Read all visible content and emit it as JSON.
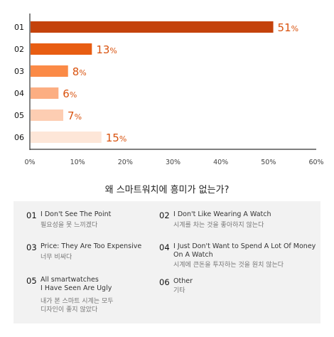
{
  "chart_data": {
    "type": "bar",
    "orientation": "horizontal",
    "categories": [
      "01",
      "02",
      "03",
      "04",
      "05",
      "06"
    ],
    "values": [
      51,
      13,
      8,
      6,
      7,
      15
    ],
    "value_labels": [
      "51%",
      "13%",
      "8%",
      "6%",
      "7%",
      "15%"
    ],
    "bar_colors": [
      "#c4420b",
      "#e85d12",
      "#fb8a46",
      "#fcae82",
      "#fdcdb2",
      "#fde6d8"
    ],
    "label_color": "#d9530f",
    "x_ticks": [
      "0%",
      "10%",
      "20%",
      "30%",
      "40%",
      "50%",
      "60%"
    ],
    "xlim": [
      0,
      60
    ],
    "grid": false
  },
  "question": "왜 스마트워치에 흥미가 없는가?",
  "legend": [
    {
      "num": "01",
      "en": "I Don't See The Point",
      "ko": "필요성을 못 느끼겠다"
    },
    {
      "num": "02",
      "en": "I Don't Like Wearing A Watch",
      "ko": "시계를 차는 것을 좋아하지 않는다"
    },
    {
      "num": "03",
      "en": "Price: They Are Too Expensive",
      "ko": "너무 비싸다"
    },
    {
      "num": "04",
      "en": "I Just Don't Want to Spend A Lot Of Money\nOn A Watch",
      "ko": "시계에 큰돈을 투자하는 것을 원치 않는다"
    },
    {
      "num": "05",
      "en": "All smartwatches\nI Have Seen Are Ugly",
      "ko": "내가 본 스마트 시계는 모두\n디자인이 좋지 않았다"
    },
    {
      "num": "06",
      "en": "Other",
      "ko": "기타"
    }
  ]
}
